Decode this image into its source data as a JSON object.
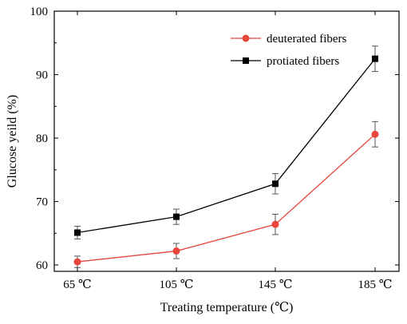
{
  "chart_data": {
    "type": "line",
    "categories": [
      "65 ℃",
      "105 ℃",
      "145 ℃",
      "185 ℃"
    ],
    "series": [
      {
        "name": "deuterated fibers",
        "color": "#e8463c",
        "marker": "circle",
        "values": [
          60.5,
          62.2,
          66.4,
          80.6
        ],
        "errors": [
          0.9,
          1.2,
          1.6,
          2.0
        ]
      },
      {
        "name": "protiated fibers",
        "color": "#000000",
        "marker": "square",
        "values": [
          65.1,
          67.6,
          72.8,
          92.5
        ],
        "errors": [
          1.0,
          1.2,
          1.6,
          2.0
        ]
      }
    ],
    "xlabel": "Treating temperature (℃)",
    "ylabel": "Glucose yeild (%)",
    "ylim": [
      59,
      100
    ],
    "yticks": [
      "60",
      "70",
      "80",
      "90",
      "100"
    ],
    "legend_position": "top-right",
    "grid": false
  }
}
